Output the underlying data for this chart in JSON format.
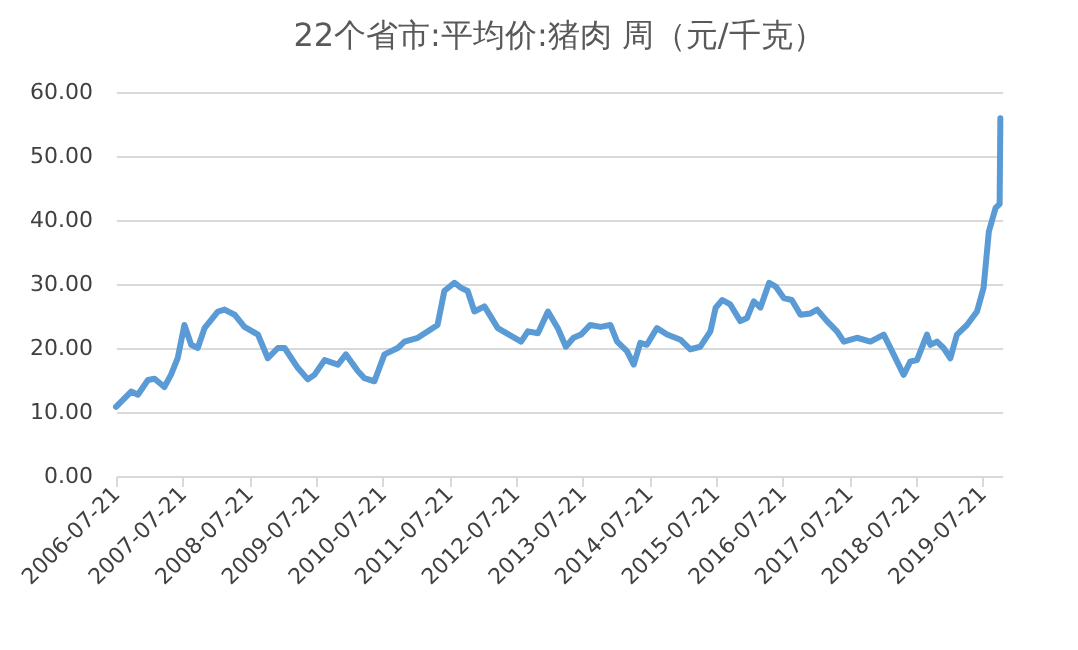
{
  "chart_data": {
    "type": "line",
    "title": "22个省市:平均价:猪肉 周（元/千克）",
    "x": [
      "2006-07-21",
      "2006-10-12",
      "2006-11-18",
      "2007-01-12",
      "2007-02-17",
      "2007-04-12",
      "2007-05-18",
      "2007-06-24",
      "2007-07-31",
      "2007-09-06",
      "2007-10-12",
      "2007-11-18",
      "2008-01-30",
      "2008-03-07",
      "2008-05-01",
      "2008-06-24",
      "2008-09-06",
      "2008-10-30",
      "2008-12-24",
      "2009-01-30",
      "2009-04-12",
      "2009-06-06",
      "2009-07-12",
      "2009-09-06",
      "2009-11-18",
      "2010-01-01",
      "2010-03-07",
      "2010-04-12",
      "2010-06-06",
      "2010-07-31",
      "2010-10-12",
      "2010-11-18",
      "2011-01-30",
      "2011-05-18",
      "2011-06-24",
      "2011-08-18",
      "2011-09-24",
      "2011-10-30",
      "2011-12-06",
      "2012-01-30",
      "2012-04-12",
      "2012-06-24",
      "2012-08-18",
      "2012-09-24",
      "2012-11-18",
      "2013-01-12",
      "2013-03-07",
      "2013-04-20",
      "2013-06-01",
      "2013-07-12",
      "2013-09-01",
      "2013-10-27",
      "2013-12-20",
      "2014-01-26",
      "2014-03-21",
      "2014-04-27",
      "2014-06-02",
      "2014-07-08",
      "2014-09-01",
      "2014-10-27",
      "2015-01-08",
      "2015-03-03",
      "2015-04-27",
      "2015-06-21",
      "2015-07-20",
      "2015-08-25",
      "2015-10-08",
      "2015-12-02",
      "2016-01-08",
      "2016-02-14",
      "2016-03-21",
      "2016-05-08",
      "2016-06-13",
      "2016-07-27",
      "2016-09-09",
      "2016-10-27",
      "2016-12-20",
      "2017-01-26",
      "2017-03-21",
      "2017-05-15",
      "2017-06-21",
      "2017-09-01",
      "2017-11-14",
      "2018-01-26",
      "2018-03-21",
      "2018-05-15",
      "2018-06-21",
      "2018-07-27",
      "2018-09-20",
      "2018-10-08",
      "2018-11-14",
      "2018-12-20",
      "2019-01-26",
      "2019-03-03",
      "2019-04-27",
      "2019-06-21",
      "2019-07-27",
      "2019-08-25",
      "2019-10-01",
      "2019-10-23",
      "2019-10-27"
    ],
    "series": [
      {
        "color": "#5b9bd5",
        "values": [
          10.8,
          13.2,
          12.7,
          15.0,
          15.2,
          13.9,
          15.8,
          18.4,
          23.6,
          20.5,
          20.0,
          23.1,
          25.7,
          26.0,
          25.2,
          23.3,
          22.1,
          18.4,
          20.0,
          20.0,
          16.9,
          15.1,
          15.8,
          18.1,
          17.4,
          19.0,
          16.4,
          15.3,
          14.8,
          19.0,
          20.0,
          21.0,
          21.6,
          23.6,
          28.9,
          30.2,
          29.4,
          28.9,
          25.7,
          26.5,
          23.1,
          21.9,
          21.0,
          22.6,
          22.3,
          25.7,
          23.1,
          20.2,
          21.6,
          22.1,
          23.6,
          23.3,
          23.6,
          21.0,
          19.5,
          17.4,
          20.8,
          20.5,
          23.1,
          22.1,
          21.3,
          19.8,
          20.2,
          22.6,
          26.3,
          27.5,
          26.8,
          24.2,
          24.7,
          27.3,
          26.3,
          30.2,
          29.6,
          27.8,
          27.5,
          25.2,
          25.4,
          26.0,
          24.2,
          22.6,
          21.0,
          21.6,
          21.0,
          22.1,
          19.0,
          15.8,
          17.9,
          18.1,
          22.1,
          20.5,
          21.0,
          20.0,
          18.4,
          22.1,
          23.6,
          25.7,
          29.4,
          38.2,
          41.9,
          42.5,
          55.9
        ]
      }
    ],
    "xlim": [
      "2006-07-21",
      "2019-11-05"
    ],
    "xticks": [
      "2006-07-21",
      "2007-07-21",
      "2008-07-21",
      "2009-07-21",
      "2010-07-21",
      "2011-07-21",
      "2012-07-21",
      "2013-07-21",
      "2014-07-21",
      "2015-07-21",
      "2016-07-21",
      "2017-07-21",
      "2018-07-21",
      "2019-07-21"
    ],
    "ylim": [
      0,
      60
    ],
    "yticks": [
      {
        "value": 0,
        "label": "0.00"
      },
      {
        "value": 10,
        "label": "10.00"
      },
      {
        "value": 20,
        "label": "20.00"
      },
      {
        "value": 30,
        "label": "30.00"
      },
      {
        "value": 40,
        "label": "40.00"
      },
      {
        "value": 50,
        "label": "50.00"
      },
      {
        "value": 60,
        "label": "60.00"
      }
    ],
    "grid": "y",
    "legend": false,
    "marker": "none",
    "line_style": "solid"
  }
}
